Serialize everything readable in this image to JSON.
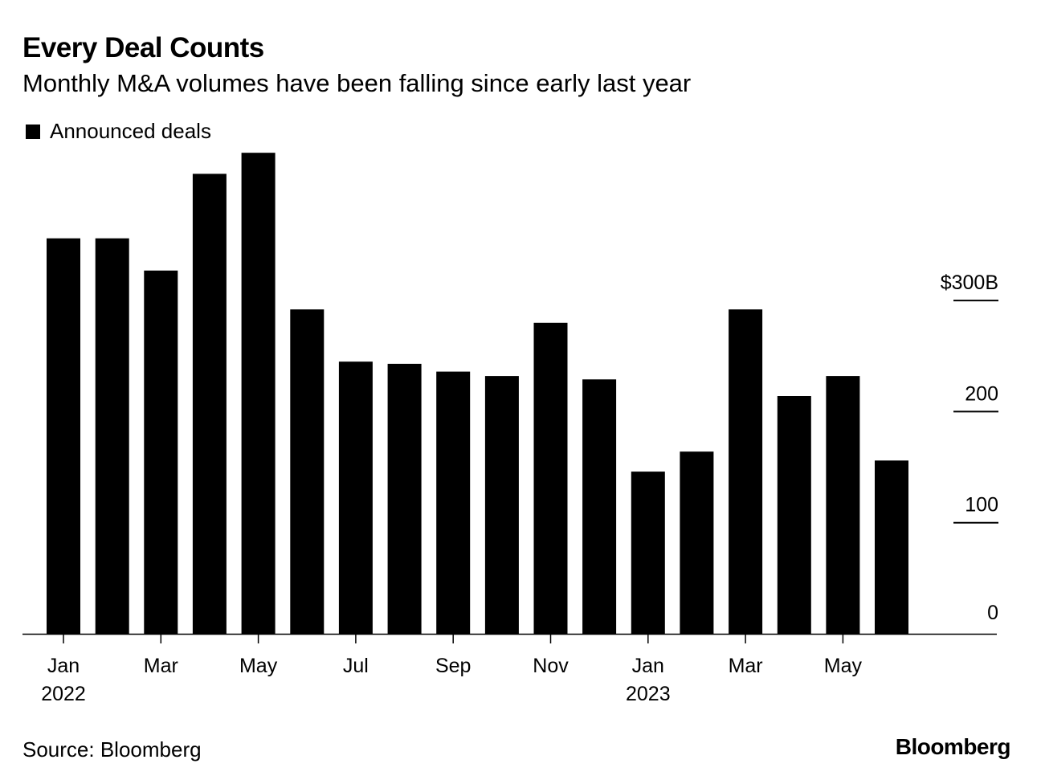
{
  "title": "Every Deal Counts",
  "subtitle": "Monthly M&A volumes have been falling since early last year",
  "legend": {
    "label": "Announced deals",
    "color": "#000000"
  },
  "source": "Source: Bloomberg",
  "brand": "Bloomberg",
  "chart_data": {
    "type": "bar",
    "title": "Every Deal Counts",
    "subtitle": "Monthly M&A volumes have been falling since early last year",
    "xlabel": "",
    "ylabel": "",
    "categories": [
      "Jan 2022",
      "Feb 2022",
      "Mar 2022",
      "Apr 2022",
      "May 2022",
      "Jun 2022",
      "Jul 2022",
      "Aug 2022",
      "Sep 2022",
      "Oct 2022",
      "Nov 2022",
      "Dec 2022",
      "Jan 2023",
      "Feb 2023",
      "Mar 2023",
      "Apr 2023",
      "May 2023",
      "Jun 2023"
    ],
    "series": [
      {
        "name": "Announced deals",
        "color": "#000000",
        "values": [
          356,
          356,
          327,
          414,
          433,
          292,
          245,
          243,
          236,
          232,
          280,
          229,
          146,
          164,
          292,
          214,
          232,
          156
        ]
      }
    ],
    "ylim": [
      0,
      433
    ],
    "y_ticks": [
      0,
      100,
      200,
      300
    ],
    "y_tick_labels": [
      "0",
      "100",
      "200",
      "$300B"
    ],
    "y_axis_position": "right",
    "x_tick_labels": [
      {
        "index": 0,
        "month": "Jan",
        "year": "2022"
      },
      {
        "index": 2,
        "month": "Mar",
        "year": ""
      },
      {
        "index": 4,
        "month": "May",
        "year": ""
      },
      {
        "index": 6,
        "month": "Jul",
        "year": ""
      },
      {
        "index": 8,
        "month": "Sep",
        "year": ""
      },
      {
        "index": 10,
        "month": "Nov",
        "year": ""
      },
      {
        "index": 12,
        "month": "Jan",
        "year": "2023"
      },
      {
        "index": 14,
        "month": "Mar",
        "year": ""
      },
      {
        "index": 16,
        "month": "May",
        "year": ""
      }
    ],
    "grid": false,
    "legend_position": "top-left"
  }
}
